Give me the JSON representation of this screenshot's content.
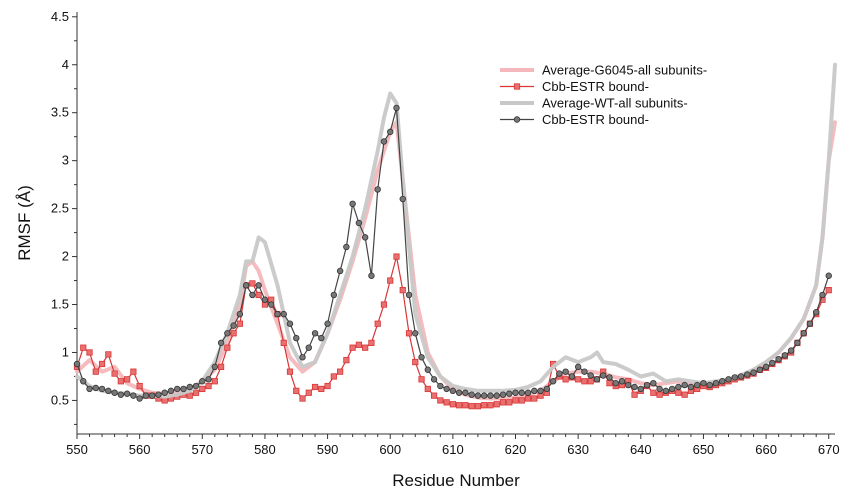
{
  "chart_data": {
    "type": "line",
    "title": "",
    "xlabel": "Residue Number",
    "ylabel": "RMSF (Å)",
    "xlim": [
      550,
      671
    ],
    "ylim": [
      0.15,
      4.55
    ],
    "xticks": [
      550,
      560,
      570,
      580,
      590,
      600,
      610,
      620,
      630,
      640,
      650,
      660,
      670
    ],
    "yticks": [
      0.5,
      1,
      1.5,
      2,
      2.5,
      3,
      3.5,
      4,
      4.5
    ],
    "ytick_labels": [
      "0.5",
      "1",
      "1.5",
      "2",
      "2.5",
      "3",
      "3.5",
      "4",
      "4.5"
    ],
    "grid": false,
    "legend_position": "top-right",
    "series": [
      {
        "name": "Average-G6045-all subunits-",
        "color": "#f4b8bc",
        "marker": "none",
        "x": [
          550,
          552,
          554,
          556,
          558,
          560,
          562,
          564,
          566,
          568,
          570,
          572,
          574,
          576,
          577,
          578,
          579,
          580,
          582,
          584,
          586,
          588,
          590,
          592,
          594,
          596,
          598,
          600,
          601,
          602,
          604,
          606,
          608,
          610,
          612,
          614,
          616,
          618,
          620,
          622,
          624,
          626,
          628,
          630,
          632,
          634,
          636,
          638,
          640,
          642,
          644,
          646,
          648,
          650,
          652,
          654,
          656,
          658,
          660,
          662,
          664,
          666,
          668,
          669,
          670,
          671
        ],
        "y": [
          0.8,
          0.92,
          0.8,
          0.85,
          0.68,
          0.62,
          0.58,
          0.57,
          0.6,
          0.62,
          0.7,
          0.82,
          1.1,
          1.5,
          1.9,
          1.95,
          1.85,
          1.65,
          1.3,
          0.95,
          0.8,
          0.9,
          1.2,
          1.55,
          1.95,
          2.4,
          2.9,
          3.3,
          3.4,
          2.8,
          1.6,
          1.0,
          0.75,
          0.62,
          0.56,
          0.53,
          0.52,
          0.52,
          0.53,
          0.56,
          0.6,
          0.7,
          0.78,
          0.8,
          0.8,
          0.78,
          0.74,
          0.72,
          0.68,
          0.66,
          0.68,
          0.7,
          0.66,
          0.64,
          0.68,
          0.72,
          0.76,
          0.82,
          0.9,
          1.0,
          1.15,
          1.35,
          1.7,
          2.2,
          3.0,
          3.4
        ]
      },
      {
        "name": "Cbb-ESTR bound-",
        "color": "#d93535",
        "marker": "square",
        "x": [
          550,
          551,
          552,
          553,
          554,
          555,
          556,
          557,
          558,
          559,
          560,
          561,
          562,
          563,
          564,
          565,
          566,
          567,
          568,
          569,
          570,
          571,
          572,
          573,
          574,
          575,
          576,
          577,
          578,
          579,
          580,
          581,
          582,
          583,
          584,
          585,
          586,
          587,
          588,
          589,
          590,
          591,
          592,
          593,
          594,
          595,
          596,
          597,
          598,
          599,
          600,
          601,
          602,
          603,
          604,
          605,
          606,
          607,
          608,
          609,
          610,
          611,
          612,
          613,
          614,
          615,
          616,
          617,
          618,
          619,
          620,
          621,
          622,
          623,
          624,
          625,
          626,
          627,
          628,
          629,
          630,
          631,
          632,
          633,
          634,
          635,
          636,
          637,
          638,
          639,
          640,
          641,
          642,
          643,
          644,
          645,
          646,
          647,
          648,
          649,
          650,
          651,
          652,
          653,
          654,
          655,
          656,
          657,
          658,
          659,
          660,
          661,
          662,
          663,
          664,
          665,
          666,
          667,
          668,
          669,
          670
        ],
        "y": [
          0.85,
          1.05,
          1.0,
          0.8,
          0.88,
          0.98,
          0.78,
          0.7,
          0.72,
          0.8,
          0.65,
          0.55,
          0.55,
          0.52,
          0.5,
          0.52,
          0.54,
          0.56,
          0.55,
          0.58,
          0.62,
          0.65,
          0.7,
          0.85,
          1.05,
          1.2,
          1.3,
          1.7,
          1.72,
          1.6,
          1.5,
          1.55,
          1.4,
          1.1,
          0.8,
          0.6,
          0.52,
          0.58,
          0.64,
          0.62,
          0.65,
          0.75,
          0.8,
          0.92,
          1.05,
          1.08,
          1.05,
          1.1,
          1.3,
          1.5,
          1.75,
          2.0,
          1.65,
          1.2,
          0.9,
          0.72,
          0.62,
          0.55,
          0.5,
          0.48,
          0.46,
          0.45,
          0.45,
          0.44,
          0.44,
          0.45,
          0.45,
          0.46,
          0.48,
          0.48,
          0.5,
          0.5,
          0.52,
          0.52,
          0.55,
          0.58,
          0.88,
          0.75,
          0.72,
          0.74,
          0.72,
          0.7,
          0.7,
          0.72,
          0.8,
          0.68,
          0.65,
          0.66,
          0.7,
          0.56,
          0.6,
          0.65,
          0.58,
          0.56,
          0.58,
          0.6,
          0.58,
          0.56,
          0.6,
          0.62,
          0.65,
          0.64,
          0.66,
          0.68,
          0.7,
          0.72,
          0.74,
          0.76,
          0.78,
          0.82,
          0.84,
          0.88,
          0.92,
          0.96,
          1.0,
          1.1,
          1.2,
          1.3,
          1.4,
          1.55,
          1.65
        ]
      },
      {
        "name": "Average-WT-all subunits-",
        "color": "#c8c8c8",
        "marker": "none",
        "x": [
          550,
          552,
          554,
          556,
          558,
          560,
          562,
          564,
          566,
          568,
          570,
          572,
          574,
          576,
          577,
          578,
          579,
          580,
          582,
          584,
          586,
          588,
          590,
          592,
          594,
          596,
          598,
          599,
          600,
          601,
          602,
          604,
          606,
          608,
          610,
          612,
          614,
          616,
          618,
          620,
          622,
          624,
          626,
          628,
          630,
          632,
          633,
          634,
          636,
          638,
          640,
          642,
          644,
          646,
          648,
          650,
          652,
          654,
          656,
          658,
          660,
          662,
          664,
          666,
          668,
          669,
          670,
          671
        ],
        "y": [
          0.75,
          0.65,
          0.6,
          0.58,
          0.57,
          0.55,
          0.55,
          0.54,
          0.56,
          0.6,
          0.7,
          0.9,
          1.2,
          1.6,
          1.95,
          1.95,
          2.2,
          2.15,
          1.7,
          1.1,
          0.85,
          0.9,
          1.2,
          1.6,
          2.0,
          2.5,
          3.1,
          3.45,
          3.7,
          3.6,
          2.8,
          1.4,
          0.95,
          0.75,
          0.65,
          0.62,
          0.6,
          0.6,
          0.6,
          0.61,
          0.64,
          0.7,
          0.85,
          0.95,
          0.9,
          0.95,
          1.0,
          0.9,
          0.88,
          0.82,
          0.75,
          0.78,
          0.7,
          0.72,
          0.7,
          0.68,
          0.7,
          0.72,
          0.76,
          0.82,
          0.9,
          1.0,
          1.15,
          1.35,
          1.7,
          2.2,
          3.0,
          4.0
        ]
      },
      {
        "name": "Cbb-ESTR bound-",
        "color": "#444444",
        "marker": "circle",
        "x": [
          550,
          551,
          552,
          553,
          554,
          555,
          556,
          557,
          558,
          559,
          560,
          561,
          562,
          563,
          564,
          565,
          566,
          567,
          568,
          569,
          570,
          571,
          572,
          573,
          574,
          575,
          576,
          577,
          578,
          579,
          580,
          581,
          582,
          583,
          584,
          585,
          586,
          587,
          588,
          589,
          590,
          591,
          592,
          593,
          594,
          595,
          596,
          597,
          598,
          599,
          600,
          601,
          602,
          603,
          604,
          605,
          606,
          607,
          608,
          609,
          610,
          611,
          612,
          613,
          614,
          615,
          616,
          617,
          618,
          619,
          620,
          621,
          622,
          623,
          624,
          625,
          626,
          627,
          628,
          629,
          630,
          631,
          632,
          633,
          634,
          635,
          636,
          637,
          638,
          639,
          640,
          641,
          642,
          643,
          644,
          645,
          646,
          647,
          648,
          649,
          650,
          651,
          652,
          653,
          654,
          655,
          656,
          657,
          658,
          659,
          660,
          661,
          662,
          663,
          664,
          665,
          666,
          667,
          668,
          669,
          670
        ],
        "y": [
          0.88,
          0.7,
          0.62,
          0.63,
          0.62,
          0.6,
          0.58,
          0.56,
          0.57,
          0.55,
          0.52,
          0.55,
          0.55,
          0.56,
          0.58,
          0.6,
          0.62,
          0.62,
          0.64,
          0.65,
          0.7,
          0.72,
          0.85,
          1.1,
          1.2,
          1.28,
          1.4,
          1.7,
          1.6,
          1.7,
          1.55,
          1.5,
          1.4,
          1.4,
          1.3,
          1.15,
          0.95,
          1.05,
          1.2,
          1.15,
          1.3,
          1.6,
          1.85,
          2.1,
          2.55,
          2.35,
          2.2,
          1.8,
          2.7,
          3.2,
          3.3,
          3.55,
          2.6,
          1.6,
          1.2,
          0.95,
          0.82,
          0.72,
          0.65,
          0.62,
          0.6,
          0.58,
          0.58,
          0.56,
          0.55,
          0.55,
          0.55,
          0.55,
          0.56,
          0.57,
          0.58,
          0.58,
          0.58,
          0.6,
          0.6,
          0.62,
          0.7,
          0.78,
          0.8,
          0.75,
          0.85,
          0.8,
          0.76,
          0.72,
          0.76,
          0.74,
          0.68,
          0.7,
          0.66,
          0.64,
          0.62,
          0.66,
          0.68,
          0.62,
          0.6,
          0.62,
          0.64,
          0.66,
          0.64,
          0.66,
          0.68,
          0.66,
          0.68,
          0.7,
          0.72,
          0.74,
          0.75,
          0.77,
          0.79,
          0.82,
          0.85,
          0.89,
          0.93,
          0.97,
          1.02,
          1.1,
          1.2,
          1.3,
          1.42,
          1.6,
          1.8
        ]
      }
    ]
  }
}
